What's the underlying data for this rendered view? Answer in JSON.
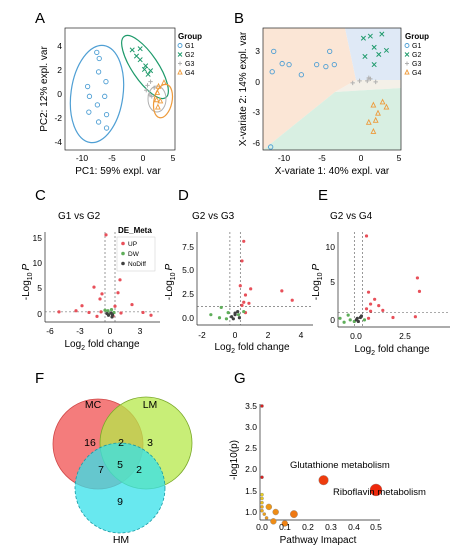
{
  "figure": {
    "panels": {
      "A": {
        "letter": "A",
        "xlabel": "PC1: 59% expl. var",
        "ylabel": "PC2: 12% expl. var",
        "xticks": [
          "-10",
          "-5",
          "0",
          "5"
        ],
        "yticks": [
          "4",
          "2",
          "0",
          "-2",
          "-4"
        ],
        "legend_title": "Group",
        "legend": [
          "G1",
          "G2",
          "G3",
          "G4"
        ]
      },
      "B": {
        "letter": "B",
        "xlabel": "X-variate 1: 40% expl. var",
        "ylabel": "X-variate 2: 14% expl. var",
        "xticks": [
          "-10",
          "-5",
          "0",
          "5"
        ],
        "yticks": [
          "3",
          "0",
          "-3",
          "-6"
        ],
        "legend_title": "Group",
        "legend": [
          "G1",
          "G2",
          "G3",
          "G4"
        ]
      },
      "C": {
        "letter": "C",
        "title": "G1 vs G2",
        "xticks": [
          "-6",
          "-3",
          "0",
          "3"
        ],
        "yticks": [
          "15",
          "10",
          "5",
          "0"
        ],
        "legend_title": "DE_Meta",
        "legend": [
          "UP",
          "DW",
          "NoDiff"
        ]
      },
      "D": {
        "letter": "D",
        "title": "G2 vs G3",
        "xticks": [
          "-2",
          "0",
          "2",
          "4"
        ],
        "yticks": [
          "7.5",
          "5.0",
          "2.5",
          "0.0"
        ]
      },
      "E": {
        "letter": "E",
        "title": "G2 vs G4",
        "xticks": [
          "0.0",
          "2.5"
        ],
        "yticks": [
          "10",
          "5",
          "0"
        ]
      },
      "volcano_axes": {
        "ylab_main": "-Log",
        "ylab_sub": "10",
        "ylab_end": "P",
        "xlab_main": "Log",
        "xlab_sub": "2",
        "xlab_end": " fold change"
      },
      "F": {
        "letter": "F",
        "sets": [
          "MC",
          "LM",
          "HM"
        ],
        "regions": [
          "16",
          "2",
          "3",
          "7",
          "5",
          "2",
          "9"
        ]
      },
      "G": {
        "letter": "G",
        "xlabel": "Pathway Imapact",
        "ylabel": "-log10(p)",
        "xticks": [
          "0.0",
          "0.1",
          "0.2",
          "0.3",
          "0.4",
          "0.5"
        ],
        "yticks": [
          "3.5",
          "3.0",
          "2.5",
          "2.0",
          "1.5",
          "1.0"
        ],
        "annotations": [
          "Glutathione metabolism",
          "Riboflavin metabolism"
        ]
      }
    }
  },
  "colors": {
    "G1": "#4f9fd4",
    "G2": "#1e9a6b",
    "G3": "#b0b0b0",
    "G4": "#ee9a3a",
    "UP": "#e8505a",
    "DW": "#5fae5a",
    "NoDiff": "#404040",
    "venn_MC": "#f26a6a",
    "venn_LM": "#b6e84a",
    "venn_HM": "#36e0ea"
  },
  "chart_data": [
    {
      "panel": "A",
      "type": "scatter",
      "xlim": [
        -12,
        6
      ],
      "ylim": [
        -5,
        5
      ],
      "series": [
        {
          "name": "G1",
          "marker": "circle",
          "points": [
            [
              -6.5,
              1.4
            ],
            [
              -5.3,
              0.6
            ],
            [
              -8.3,
              0.2
            ],
            [
              -5.5,
              -0.6
            ],
            [
              -6.7,
              -1.3
            ],
            [
              -8,
              -0.6
            ],
            [
              -5.2,
              -2.1
            ],
            [
              -5.2,
              -3.2
            ],
            [
              -6.5,
              -2.7
            ],
            [
              -8.1,
              -1.9
            ],
            [
              -6.4,
              2.5
            ],
            [
              -6.8,
              3.0
            ]
          ]
        },
        {
          "name": "G2",
          "marker": "x",
          "points": [
            [
              -1,
              3.2
            ],
            [
              0.3,
              2.4
            ],
            [
              1.2,
              1.9
            ],
            [
              1.6,
              1.2
            ],
            [
              2,
              1.5
            ],
            [
              0.3,
              3.3
            ],
            [
              -0.3,
              2.7
            ],
            [
              1,
              1.6
            ]
          ]
        },
        {
          "name": "G3",
          "marker": "plus",
          "points": [
            [
              1.5,
              0.3
            ],
            [
              2.6,
              0.1
            ],
            [
              2.2,
              -0.6
            ],
            [
              1.3,
              -0.1
            ],
            [
              2,
              0.6
            ],
            [
              1.9,
              -0.5
            ]
          ]
        },
        {
          "name": "G4",
          "marker": "triangle",
          "points": [
            [
              3,
              -0.9
            ],
            [
              3.6,
              -1
            ],
            [
              4.2,
              0.5
            ],
            [
              3.2,
              -1.5
            ],
            [
              3.3,
              0.2
            ],
            [
              3.1,
              -0.3
            ]
          ]
        }
      ]
    },
    {
      "panel": "B",
      "type": "scatter",
      "xlim": [
        -12,
        6
      ],
      "ylim": [
        -6.5,
        5.5
      ],
      "series": [
        {
          "name": "G1",
          "marker": "circle",
          "points": [
            [
              -11,
              -6.2
            ],
            [
              -9.5,
              2
            ],
            [
              -10.8,
              1.2
            ],
            [
              -7,
              0.9
            ],
            [
              -5,
              1.9
            ],
            [
              -2.7,
              1.9
            ],
            [
              -3.3,
              3.2
            ],
            [
              -3.8,
              1.7
            ],
            [
              -8.6,
              1.9
            ],
            [
              -10.6,
              3.2
            ]
          ]
        },
        {
          "name": "G2",
          "marker": "x",
          "points": [
            [
              2,
              4.7
            ],
            [
              3.5,
              4.9
            ],
            [
              1.3,
              2.7
            ],
            [
              3.1,
              2.9
            ],
            [
              2.5,
              3.6
            ],
            [
              4.1,
              3.3
            ],
            [
              2.5,
              1.9
            ],
            [
              1.1,
              4.5
            ]
          ]
        },
        {
          "name": "G3",
          "marker": "plus",
          "points": [
            [
              2,
              0.5
            ],
            [
              1.6,
              0.3
            ],
            [
              2.7,
              0.2
            ],
            [
              0.6,
              0.3
            ],
            [
              -0.3,
              0.1
            ],
            [
              1.8,
              0.6
            ]
          ]
        },
        {
          "name": "G4",
          "marker": "triangle",
          "points": [
            [
              2.4,
              -2.1
            ],
            [
              3.6,
              -1.8
            ],
            [
              3,
              -2.9
            ],
            [
              2.7,
              -3.6
            ],
            [
              1.8,
              -3.8
            ],
            [
              2.4,
              -4.7
            ],
            [
              4.1,
              -2.3
            ]
          ]
        }
      ]
    },
    {
      "panel": "C",
      "type": "scatter",
      "title": "G1 vs G2",
      "xlim": [
        -6.5,
        5
      ],
      "ylim": [
        -0.5,
        15.5
      ],
      "thresholds": {
        "x": [
          -0.5,
          0.5
        ],
        "y": 1.3
      },
      "series": [
        {
          "name": "UP",
          "points": [
            [
              -1.6,
              5.7
            ],
            [
              1,
              7
            ],
            [
              -0.8,
              4.5
            ],
            [
              0.8,
              4.7
            ],
            [
              -1,
              3.6
            ],
            [
              0.5,
              2.3
            ],
            [
              -3.4,
              1.5
            ],
            [
              -2.8,
              2.4
            ],
            [
              -2.1,
              1.2
            ],
            [
              -0.9,
              1.3
            ],
            [
              1.1,
              1.1
            ],
            [
              -5.1,
              1.3
            ],
            [
              3.3,
              1.2
            ],
            [
              4.1,
              0.7
            ],
            [
              0.3,
              0.6
            ],
            [
              -1.3,
              0.5
            ],
            [
              2.2,
              2.6
            ],
            [
              -0.4,
              15
            ]
          ]
        },
        {
          "name": "DW",
          "points": [
            [
              0.15,
              1.7
            ],
            [
              -0.2,
              1.5
            ],
            [
              -0.5,
              1.6
            ],
            [
              0.4,
              1.2
            ],
            [
              -0.1,
              0.9
            ]
          ]
        },
        {
          "name": "NoDiff",
          "points": [
            [
              -0.3,
              1
            ],
            [
              0.1,
              1.1
            ],
            [
              0.25,
              0.8
            ],
            [
              -0.15,
              0.7
            ],
            [
              0.2,
              0.4
            ]
          ]
        }
      ]
    },
    {
      "panel": "D",
      "type": "scatter",
      "title": "G2 vs G3",
      "xlim": [
        -2.2,
        4.5
      ],
      "ylim": [
        -0.5,
        8.5
      ],
      "thresholds": {
        "x": [
          -0.3,
          0.3
        ],
        "y": 1.3
      },
      "series": [
        {
          "name": "UP",
          "points": [
            [
              0.5,
              7.6
            ],
            [
              0.4,
              5.7
            ],
            [
              0.3,
              3.3
            ],
            [
              0.9,
              3
            ],
            [
              0.6,
              2.4
            ],
            [
              0.5,
              1.7
            ],
            [
              3.3,
              1.9
            ],
            [
              2.7,
              2.8
            ],
            [
              0.8,
              1.6
            ],
            [
              0.4,
              1.4
            ],
            [
              0.6,
              0.7
            ]
          ]
        },
        {
          "name": "DW",
          "points": [
            [
              -1.4,
              0.5
            ],
            [
              -0.8,
              1.2
            ],
            [
              -0.9,
              0.2
            ],
            [
              -0.4,
              0.7
            ],
            [
              0.2,
              0.5
            ],
            [
              0.5,
              0.8
            ],
            [
              -0.5,
              0.1
            ]
          ]
        },
        {
          "name": "NoDiff",
          "points": [
            [
              -0.2,
              0.3
            ],
            [
              0,
              0.5
            ],
            [
              0.15,
              0.8
            ],
            [
              -0.1,
              0.1
            ],
            [
              0.25,
              0.2
            ],
            [
              0,
              0.65
            ]
          ]
        }
      ]
    },
    {
      "panel": "E",
      "type": "scatter",
      "title": "G2 vs G4",
      "xlim": [
        -1,
        4.5
      ],
      "ylim": [
        -0.5,
        11.5
      ],
      "thresholds": {
        "x": [
          -0.2,
          0.2
        ],
        "y": 1.3
      },
      "series": [
        {
          "name": "UP",
          "points": [
            [
              0.4,
              11
            ],
            [
              3,
              4
            ],
            [
              2.9,
              5.7
            ],
            [
              0.5,
              3.9
            ],
            [
              0.8,
              3
            ],
            [
              0.6,
              2.4
            ],
            [
              1,
              2.2
            ],
            [
              0.4,
              1.8
            ],
            [
              1.2,
              1.6
            ],
            [
              0.6,
              1.5
            ],
            [
              1.7,
              0.7
            ],
            [
              0.5,
              0.6
            ],
            [
              2.8,
              0.8
            ]
          ]
        },
        {
          "name": "DW",
          "points": [
            [
              -0.9,
              0.6
            ],
            [
              -0.5,
              1
            ],
            [
              -0.4,
              0.4
            ],
            [
              -0.2,
              0.2
            ],
            [
              0.3,
              0.4
            ],
            [
              -0.7,
              0.1
            ]
          ]
        },
        {
          "name": "NoDiff",
          "points": [
            [
              -0.1,
              0.4
            ],
            [
              0.1,
              0.7
            ],
            [
              0,
              0.2
            ],
            [
              0.15,
              0.9
            ],
            [
              -0.05,
              0.6
            ]
          ]
        }
      ]
    },
    {
      "panel": "G",
      "type": "scatter",
      "xlabel": "Pathway Imapact",
      "ylabel": "-log10(p)",
      "xlim": [
        0,
        0.52
      ],
      "ylim": [
        0.8,
        3.65
      ],
      "points": [
        {
          "x": 0.0,
          "y": 3.5,
          "size": 0,
          "impact": 0
        },
        {
          "x": 0.0,
          "y": 1.82,
          "size": 0,
          "impact": 0
        },
        {
          "x": 0.0,
          "y": 1.41,
          "size": 0,
          "impact": 0.1
        },
        {
          "x": 0.0,
          "y": 1.32,
          "size": 0,
          "impact": 0.15
        },
        {
          "x": 0.0,
          "y": 1.22,
          "size": 0,
          "impact": 0.2
        },
        {
          "x": 0.0,
          "y": 1.12,
          "size": 0,
          "impact": 0.3
        },
        {
          "x": 0.0,
          "y": 1.03,
          "size": 0,
          "impact": 0.3
        },
        {
          "x": 0.01,
          "y": 0.95,
          "size": 0,
          "impact": 0.35
        },
        {
          "x": 0.02,
          "y": 0.86,
          "size": 0,
          "impact": 0.4
        },
        {
          "x": 0.03,
          "y": 1.12,
          "size": 1,
          "impact": 0.4
        },
        {
          "x": 0.05,
          "y": 0.78,
          "size": 1,
          "impact": 0.45
        },
        {
          "x": 0.06,
          "y": 1.0,
          "size": 1,
          "impact": 0.45
        },
        {
          "x": 0.1,
          "y": 0.73,
          "size": 1,
          "impact": 0.5
        },
        {
          "x": 0.14,
          "y": 0.95,
          "size": 2,
          "impact": 0.55
        },
        {
          "x": 0.27,
          "y": 1.75,
          "size": 3,
          "impact": 0.85,
          "label": "Glutathione metabolism"
        },
        {
          "x": 0.5,
          "y": 1.52,
          "size": 4,
          "impact": 0.95,
          "label": "Riboflavin metabolism"
        }
      ]
    }
  ]
}
